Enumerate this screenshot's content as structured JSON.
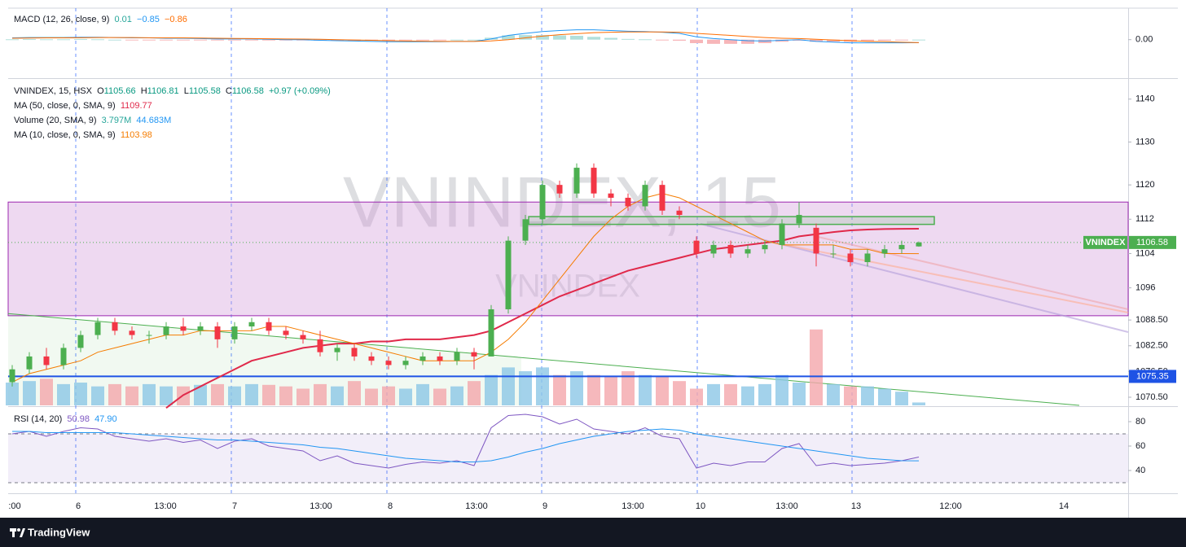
{
  "chart_data": {
    "type": "candlestick",
    "symbol_label": "VNINDEX",
    "watermark": "VNINDEX, 15",
    "watermark_sub": "VNINDEX",
    "footer": "TradingView",
    "colors": {
      "up": "#4caf50",
      "down": "#f23645",
      "volume_up": "#8cc7e6",
      "volume_down": "#f4a6ab",
      "ma50": "#e0294a",
      "ma10": "#f57c00",
      "rsi": "#7e57c2",
      "rsi_ma": "#2196f3",
      "macd": "#2196f3",
      "signal": "#ff6d00",
      "hist_up": "#b2dfdb",
      "hist_down": "#f7b6b9"
    },
    "legend": [
      [
        {
          "text": "VNINDEX, 15, HSX  O",
          "color": "#131722"
        },
        {
          "text": "1105.66",
          "color": "#089981"
        },
        {
          "text": "  H",
          "color": "#131722"
        },
        {
          "text": "1106.81",
          "color": "#089981"
        },
        {
          "text": "  L",
          "color": "#131722"
        },
        {
          "text": "1105.58",
          "color": "#089981"
        },
        {
          "text": "  C",
          "color": "#131722"
        },
        {
          "text": "1106.58",
          "color": "#089981"
        },
        {
          "text": "  +0.97 (+0.09%)",
          "color": "#089981"
        }
      ],
      [
        {
          "text": "MA (50, close, 0, SMA, 9)  ",
          "color": "#131722"
        },
        {
          "text": "1109.77",
          "color": "#e0294a"
        }
      ],
      [
        {
          "text": "Volume (20, SMA, 9)  ",
          "color": "#131722"
        },
        {
          "text": "3.797M",
          "color": "#26a69a"
        },
        {
          "text": "  44.683M",
          "color": "#2196f3"
        }
      ],
      [
        {
          "text": "MA (10, close, 0, SMA, 9)  ",
          "color": "#131722"
        },
        {
          "text": "1103.98",
          "color": "#f57c00"
        }
      ]
    ],
    "macd_legend": [
      {
        "text": "MACD (12, 26, close, 9)  ",
        "color": "#131722"
      },
      {
        "text": "0.01",
        "color": "#26a69a"
      },
      {
        "text": "  −0.85",
        "color": "#2196f3"
      },
      {
        "text": "  −0.86",
        "color": "#ff6d00"
      }
    ],
    "rsi_legend": [
      {
        "text": "RSI (14, 20)  ",
        "color": "#131722"
      },
      {
        "text": "50.98",
        "color": "#7e57c2"
      },
      {
        "text": "  47.90",
        "color": "#2196f3"
      }
    ],
    "x_labels": [
      ":00",
      "6",
      "13:00",
      "7",
      "13:00",
      "8",
      "13:00",
      "9",
      "13:00",
      "10",
      "13:00",
      "13",
      "12:00",
      "14"
    ],
    "ylim": [
      1068.6,
      1144.7
    ],
    "yticks": [
      1140,
      1130,
      1120,
      1112,
      1104,
      1096,
      {
        "value": 1088.5,
        "label": "1088.50"
      },
      {
        "value": 1082.5,
        "label": "1082.50"
      },
      {
        "value": 1076.5,
        "label": "1076.50"
      },
      {
        "value": 1070.5,
        "label": "1070.50"
      }
    ],
    "volume_lim": [
      0,
      430
    ],
    "macd_lim": [
      -11,
      9
    ],
    "macd_ticks": [
      {
        "value": 0,
        "label": "0.00"
      }
    ],
    "rsi_lim": [
      22,
      92
    ],
    "rsi_ticks": [
      80,
      60,
      40
    ],
    "rsi_bands": [
      30,
      70
    ],
    "zone": {
      "low": 1089.5,
      "high": 1116
    },
    "box": {
      "low": 1110.8,
      "high": 1112.6
    },
    "trendline": {
      "from": 1090,
      "to": 1068.6
    },
    "support": {
      "value": 1075.35
    },
    "open": [
      1074,
      1077,
      1080,
      1078,
      1082,
      1085,
      1088,
      1086,
      1085,
      1085,
      1087,
      1086,
      1087,
      1084,
      1087,
      1088,
      1086,
      1085,
      1084,
      1081,
      1082,
      1080,
      1079,
      1078,
      1079,
      1080,
      1079,
      1081,
      1080,
      1091,
      1107,
      1112,
      1120,
      1118,
      1124,
      1118,
      1117,
      1115,
      1120,
      1114,
      1107,
      1104,
      1106,
      1104,
      1105,
      1106,
      1111,
      1110,
      1104,
      1104,
      1102,
      1104,
      1105,
      1105.66
    ],
    "high": [
      1078,
      1081,
      1082,
      1083,
      1086,
      1089,
      1089,
      1087,
      1086,
      1088,
      1089,
      1088,
      1088,
      1088,
      1089,
      1089,
      1087,
      1086,
      1086,
      1083,
      1083,
      1081,
      1080,
      1080,
      1081,
      1081,
      1082,
      1082,
      1092,
      1108,
      1113,
      1121,
      1121,
      1125,
      1125,
      1119,
      1118,
      1121,
      1121,
      1115,
      1108,
      1107,
      1107,
      1106,
      1107,
      1112,
      1116,
      1111,
      1106,
      1105,
      1105,
      1106,
      1107,
      1106.81
    ],
    "low": [
      1073,
      1076,
      1077,
      1077,
      1081,
      1084,
      1085,
      1084,
      1083,
      1084,
      1085,
      1085,
      1082,
      1083,
      1086,
      1085,
      1084,
      1083,
      1080,
      1079,
      1079,
      1078,
      1077,
      1077,
      1078,
      1078,
      1078,
      1077,
      1080,
      1090,
      1106,
      1111,
      1117,
      1117,
      1117,
      1115,
      1114,
      1114,
      1113,
      1112,
      1103,
      1103,
      1103,
      1103,
      1104,
      1105,
      1110,
      1101,
      1103,
      1101,
      1101,
      1103,
      1104,
      1105.58
    ],
    "close": [
      1077,
      1080,
      1078,
      1082,
      1085,
      1088,
      1086,
      1085,
      1085,
      1087,
      1086,
      1087,
      1084,
      1087,
      1088,
      1086,
      1085,
      1084,
      1081,
      1082,
      1080,
      1079,
      1078,
      1079,
      1080,
      1079,
      1081,
      1080,
      1091,
      1107,
      1112,
      1120,
      1118,
      1124,
      1118,
      1117,
      1115,
      1120,
      1114,
      1113,
      1104,
      1106,
      1104,
      1105,
      1106,
      1111,
      1113,
      1104,
      1104,
      1102,
      1104,
      1105,
      1106,
      1106.58
    ],
    "volume": [
      30,
      32,
      35,
      28,
      30,
      25,
      28,
      25,
      28,
      25,
      25,
      27,
      28,
      25,
      28,
      27,
      25,
      22,
      28,
      25,
      32,
      22,
      25,
      22,
      28,
      22,
      25,
      32,
      40,
      50,
      45,
      50,
      40,
      45,
      40,
      38,
      45,
      40,
      38,
      32,
      22,
      28,
      28,
      25,
      28,
      40,
      30,
      100,
      28,
      25,
      25,
      22,
      18,
      3.797
    ],
    "ma10": [
      1074,
      1076,
      1077,
      1078,
      1079,
      1081,
      1082,
      1083,
      1084,
      1085,
      1085,
      1086,
      1086,
      1086,
      1086,
      1087,
      1087,
      1086,
      1085,
      1084,
      1083,
      1082,
      1081,
      1080,
      1079,
      1079,
      1079,
      1079,
      1081,
      1084,
      1088,
      1093,
      1098,
      1103,
      1108,
      1112,
      1115,
      1117,
      1118,
      1117,
      1115,
      1113,
      1111,
      1109,
      1107,
      1106,
      1106,
      1106,
      1106,
      1105,
      1105,
      1104,
      1104,
      1103.98
    ],
    "ma50": [
      null,
      null,
      null,
      null,
      null,
      null,
      null,
      null,
      null,
      1068,
      1071,
      1073,
      1075,
      1077,
      1079,
      1080,
      1081,
      1082,
      1082.5,
      1083,
      1083,
      1083.5,
      1083.5,
      1084,
      1084,
      1084,
      1084.5,
      1085,
      1086,
      1088,
      1090,
      1092,
      1094,
      1095.5,
      1097,
      1098.5,
      1100,
      1101,
      1102,
      1103,
      1104,
      1105,
      1105.5,
      1106,
      1106.5,
      1107,
      1108,
      1108.5,
      1109,
      1109.4,
      1109.6,
      1109.7,
      1109.75,
      1109.77
    ],
    "rsi": [
      70,
      72,
      68,
      72,
      75,
      74,
      68,
      66,
      64,
      66,
      63,
      65,
      58,
      64,
      66,
      60,
      58,
      56,
      48,
      52,
      46,
      44,
      42,
      45,
      47,
      46,
      48,
      44,
      75,
      85,
      86,
      84,
      78,
      82,
      74,
      72,
      70,
      75,
      68,
      66,
      42,
      46,
      44,
      47,
      47,
      58,
      62,
      44,
      46,
      44,
      45,
      46,
      48,
      50.98
    ],
    "rsi_ma": [
      72,
      72,
      71,
      71,
      71,
      71,
      71,
      70,
      69,
      68,
      67,
      66,
      65,
      65,
      64,
      63,
      62,
      61,
      59,
      58,
      56,
      54,
      52,
      50,
      49,
      48,
      47,
      47,
      48,
      51,
      55,
      58,
      62,
      65,
      68,
      70,
      72,
      73,
      74,
      73,
      70,
      68,
      66,
      64,
      62,
      60,
      58,
      56,
      54,
      52,
      50,
      49,
      48,
      47.9
    ],
    "macd": [
      0.5,
      0.6,
      0.6,
      0.6,
      0.7,
      0.7,
      0.6,
      0.5,
      0.5,
      0.4,
      0.4,
      0.3,
      0.2,
      0.2,
      0.2,
      0.1,
      0,
      0,
      -0.2,
      -0.3,
      -0.4,
      -0.5,
      -0.6,
      -0.6,
      -0.6,
      -0.6,
      -0.5,
      -0.5,
      0.2,
      1.2,
      1.8,
      2.3,
      2.6,
      2.8,
      2.8,
      2.6,
      2.4,
      2.3,
      2.1,
      1.8,
      0.8,
      0.3,
      0,
      -0.3,
      -0.4,
      -0.2,
      0,
      -0.5,
      -0.7,
      -0.9,
      -0.9,
      -0.9,
      -0.9,
      -0.85
    ],
    "signal": [
      0.4,
      0.45,
      0.5,
      0.5,
      0.55,
      0.6,
      0.6,
      0.6,
      0.55,
      0.5,
      0.5,
      0.45,
      0.4,
      0.35,
      0.3,
      0.25,
      0.2,
      0.15,
      0.1,
      0,
      -0.1,
      -0.2,
      -0.3,
      -0.4,
      -0.45,
      -0.5,
      -0.5,
      -0.5,
      -0.35,
      0,
      0.5,
      1,
      1.4,
      1.7,
      2,
      2.1,
      2.2,
      2.2,
      2.2,
      2.1,
      1.8,
      1.5,
      1.2,
      0.9,
      0.6,
      0.4,
      0.3,
      0.1,
      -0.1,
      -0.3,
      -0.5,
      -0.6,
      -0.75,
      -0.86
    ],
    "hist": [
      0.1,
      0.15,
      0.1,
      0.1,
      0.15,
      0.1,
      0,
      -0.1,
      -0.05,
      -0.1,
      -0.1,
      -0.15,
      -0.2,
      -0.15,
      -0.1,
      -0.15,
      -0.2,
      -0.15,
      -0.3,
      -0.3,
      -0.3,
      -0.3,
      -0.3,
      -0.2,
      -0.15,
      -0.1,
      0,
      0,
      0.55,
      1.2,
      1.3,
      1.3,
      1.2,
      1.1,
      0.8,
      0.5,
      0.2,
      0.1,
      -0.1,
      -0.3,
      -1,
      -1.2,
      -1.2,
      -1.2,
      -1,
      -0.6,
      -0.3,
      -0.6,
      -0.6,
      -0.6,
      -0.4,
      -0.3,
      -0.15,
      0.01
    ]
  }
}
